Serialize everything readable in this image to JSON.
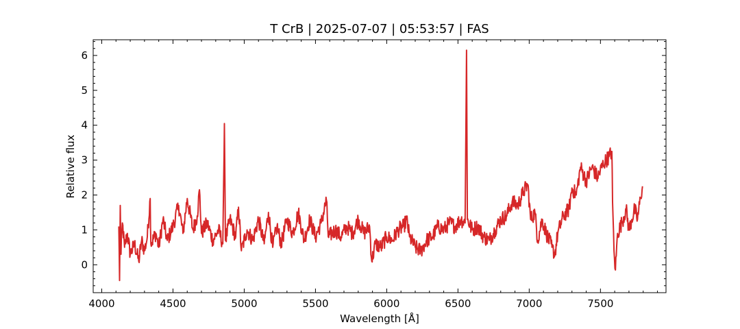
{
  "chart_data": {
    "type": "line",
    "title": "T CrB | 2025-07-07 | 05:53:57 | FAS",
    "xlabel": "Wavelength [Å]",
    "ylabel": "Relative flux",
    "xlim": [
      3940,
      7960
    ],
    "ylim": [
      -0.8,
      6.45
    ],
    "x_ticks": [
      4000,
      4500,
      5000,
      5500,
      6000,
      6500,
      7000,
      7500
    ],
    "y_ticks": [
      0,
      1,
      2,
      3,
      4,
      5,
      6
    ],
    "grid": false,
    "series": [
      {
        "color": "#d62728",
        "points": [
          [
            4120,
            1.1
          ],
          [
            4125,
            -0.45
          ],
          [
            4130,
            1.7
          ],
          [
            4135,
            0.3
          ],
          [
            4145,
            1.2
          ],
          [
            4160,
            0.5
          ],
          [
            4180,
            0.9
          ],
          [
            4200,
            0.3
          ],
          [
            4230,
            0.6
          ],
          [
            4260,
            0.1
          ],
          [
            4280,
            0.7
          ],
          [
            4300,
            0.4
          ],
          [
            4320,
            0.8
          ],
          [
            4340,
            1.9
          ],
          [
            4345,
            0.6
          ],
          [
            4380,
            0.9
          ],
          [
            4400,
            0.5
          ],
          [
            4430,
            1.3
          ],
          [
            4460,
            0.7
          ],
          [
            4500,
            1.1
          ],
          [
            4540,
            1.7
          ],
          [
            4570,
            0.9
          ],
          [
            4600,
            1.9
          ],
          [
            4640,
            1.0
          ],
          [
            4670,
            1.4
          ],
          [
            4686,
            2.15
          ],
          [
            4700,
            0.9
          ],
          [
            4740,
            1.2
          ],
          [
            4780,
            0.7
          ],
          [
            4820,
            1.0
          ],
          [
            4850,
            0.6
          ],
          [
            4861,
            4.05
          ],
          [
            4868,
            0.7
          ],
          [
            4900,
            1.3
          ],
          [
            4940,
            0.8
          ],
          [
            4960,
            1.65
          ],
          [
            4980,
            0.4
          ],
          [
            5020,
            1.0
          ],
          [
            5060,
            0.7
          ],
          [
            5100,
            1.3
          ],
          [
            5140,
            0.6
          ],
          [
            5170,
            1.5
          ],
          [
            5200,
            0.5
          ],
          [
            5230,
            1.1
          ],
          [
            5260,
            0.6
          ],
          [
            5300,
            1.3
          ],
          [
            5340,
            0.9
          ],
          [
            5380,
            1.5
          ],
          [
            5420,
            0.7
          ],
          [
            5460,
            1.3
          ],
          [
            5500,
            0.8
          ],
          [
            5540,
            1.2
          ],
          [
            5577,
            1.85
          ],
          [
            5590,
            0.8
          ],
          [
            5640,
            1.0
          ],
          [
            5680,
            0.8
          ],
          [
            5720,
            1.1
          ],
          [
            5760,
            0.9
          ],
          [
            5800,
            1.3
          ],
          [
            5840,
            0.9
          ],
          [
            5880,
            1.1
          ],
          [
            5895,
            0.1
          ],
          [
            5920,
            0.6
          ],
          [
            5960,
            0.5
          ],
          [
            6000,
            0.8
          ],
          [
            6040,
            0.7
          ],
          [
            6080,
            1.0
          ],
          [
            6120,
            1.1
          ],
          [
            6140,
            1.3
          ],
          [
            6160,
            0.8
          ],
          [
            6200,
            0.5
          ],
          [
            6240,
            0.4
          ],
          [
            6280,
            0.7
          ],
          [
            6320,
            0.8
          ],
          [
            6360,
            1.1
          ],
          [
            6400,
            1.0
          ],
          [
            6440,
            1.2
          ],
          [
            6480,
            1.1
          ],
          [
            6520,
            1.3
          ],
          [
            6550,
            1.2
          ],
          [
            6560,
            6.15
          ],
          [
            6566,
            1.3
          ],
          [
            6600,
            1.0
          ],
          [
            6640,
            1.1
          ],
          [
            6680,
            0.8
          ],
          [
            6720,
            0.7
          ],
          [
            6760,
            1.0
          ],
          [
            6800,
            1.3
          ],
          [
            6840,
            1.4
          ],
          [
            6880,
            1.8
          ],
          [
            6920,
            1.7
          ],
          [
            6960,
            2.1
          ],
          [
            6990,
            2.3
          ],
          [
            7010,
            1.3
          ],
          [
            7040,
            1.5
          ],
          [
            7060,
            0.7
          ],
          [
            7090,
            1.3
          ],
          [
            7120,
            0.9
          ],
          [
            7160,
            0.5
          ],
          [
            7180,
            0.3
          ],
          [
            7200,
            0.9
          ],
          [
            7240,
            1.4
          ],
          [
            7280,
            1.6
          ],
          [
            7300,
            2.2
          ],
          [
            7330,
            2.0
          ],
          [
            7360,
            2.8
          ],
          [
            7400,
            2.4
          ],
          [
            7440,
            2.8
          ],
          [
            7480,
            2.5
          ],
          [
            7520,
            2.9
          ],
          [
            7560,
            3.1
          ],
          [
            7580,
            3.25
          ],
          [
            7585,
            1.8
          ],
          [
            7595,
            0.4
          ],
          [
            7605,
            -0.15
          ],
          [
            7620,
            0.9
          ],
          [
            7650,
            1.2
          ],
          [
            7680,
            1.6
          ],
          [
            7700,
            1.0
          ],
          [
            7720,
            1.3
          ],
          [
            7740,
            1.6
          ],
          [
            7760,
            1.3
          ],
          [
            7780,
            1.9
          ],
          [
            7795,
            2.25
          ]
        ]
      }
    ]
  }
}
